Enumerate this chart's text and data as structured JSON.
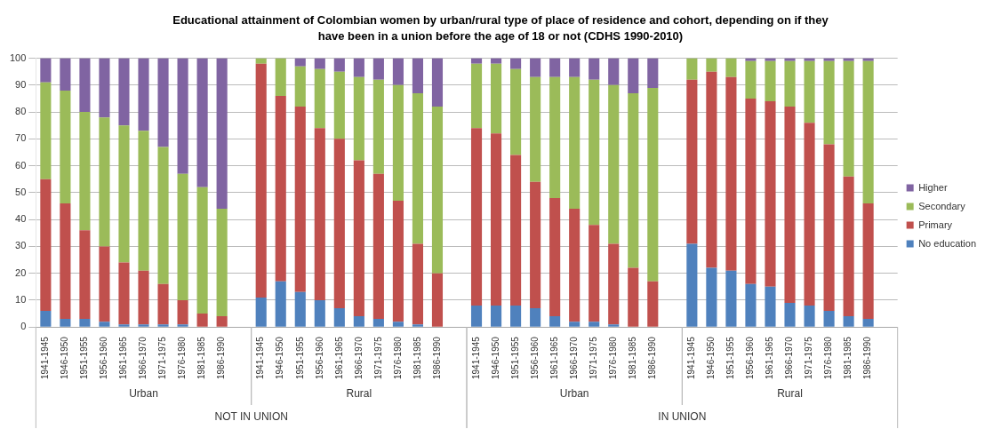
{
  "chart_data": {
    "type": "bar",
    "stacked": true,
    "title": "Educational attainment of Colombian women by urban/rural type of place of residence and cohort, depending on if they have been in a union before the age of 18 or not (CDHS 1990-2010)",
    "categories": [
      "1941-1945",
      "1946-1950",
      "1951-1955",
      "1956-1960",
      "1961-1965",
      "1966-1970",
      "1971-1975",
      "1976-1980",
      "1981-1985",
      "1986-1990",
      null,
      "1941-1945",
      "1946-1950",
      "1951-1955",
      "1956-1960",
      "1961-1965",
      "1966-1970",
      "1971-1975",
      "1976-1980",
      "1981-1985",
      "1986-1990",
      null,
      "1941-1945",
      "1946-1950",
      "1951-1955",
      "1956-1960",
      "1961-1965",
      "1966-1970",
      "1971-1975",
      "1976-1980",
      "1981-1985",
      "1986-1990",
      null,
      "1941-1945",
      "1946-1950",
      "1951-1955",
      "1956-1960",
      "1961-1965",
      "1966-1970",
      "1971-1975",
      "1976-1980",
      "1981-1985",
      "1986-1990",
      null
    ],
    "series": [
      {
        "name": "No education",
        "color": "#4f81bd",
        "values": [
          6,
          3,
          3,
          2,
          1,
          1,
          1,
          1,
          0,
          0,
          null,
          11,
          17,
          13,
          10,
          7,
          4,
          3,
          2,
          1,
          0,
          null,
          8,
          8,
          8,
          7,
          4,
          2,
          2,
          1,
          0,
          0,
          null,
          31,
          22,
          21,
          16,
          15,
          9,
          8,
          6,
          4,
          3,
          null
        ]
      },
      {
        "name": "Primary",
        "color": "#c0504d",
        "values": [
          49,
          43,
          33,
          28,
          23,
          20,
          15,
          9,
          5,
          4,
          null,
          87,
          69,
          69,
          64,
          63,
          58,
          54,
          45,
          30,
          20,
          null,
          66,
          64,
          56,
          47,
          44,
          42,
          36,
          30,
          22,
          17,
          null,
          61,
          73,
          72,
          69,
          69,
          73,
          68,
          62,
          52,
          43,
          null
        ]
      },
      {
        "name": "Secondary",
        "color": "#9bbb59",
        "values": [
          36,
          42,
          44,
          48,
          51,
          52,
          51,
          47,
          47,
          40,
          null,
          2,
          14,
          15,
          22,
          25,
          31,
          35,
          43,
          56,
          62,
          null,
          24,
          26,
          32,
          39,
          45,
          49,
          54,
          59,
          65,
          72,
          null,
          8,
          5,
          7,
          14,
          15,
          17,
          23,
          31,
          43,
          53,
          null
        ]
      },
      {
        "name": "Higher",
        "color": "#8064a2",
        "values": [
          9,
          12,
          20,
          22,
          25,
          27,
          33,
          43,
          48,
          56,
          null,
          0,
          0,
          3,
          4,
          5,
          7,
          8,
          10,
          13,
          18,
          null,
          2,
          2,
          4,
          7,
          7,
          7,
          8,
          10,
          13,
          11,
          null,
          0,
          0,
          0,
          1,
          1,
          1,
          1,
          1,
          1,
          1,
          null
        ]
      }
    ],
    "ylim": [
      0,
      100
    ],
    "yticks": [
      0,
      10,
      20,
      30,
      40,
      50,
      60,
      70,
      80,
      90,
      100
    ],
    "grid": "y",
    "legend": "right",
    "annotations": [
      "Urban",
      "Rural",
      "Urban",
      "Rural",
      "NOT IN UNION",
      "IN UNION"
    ]
  }
}
